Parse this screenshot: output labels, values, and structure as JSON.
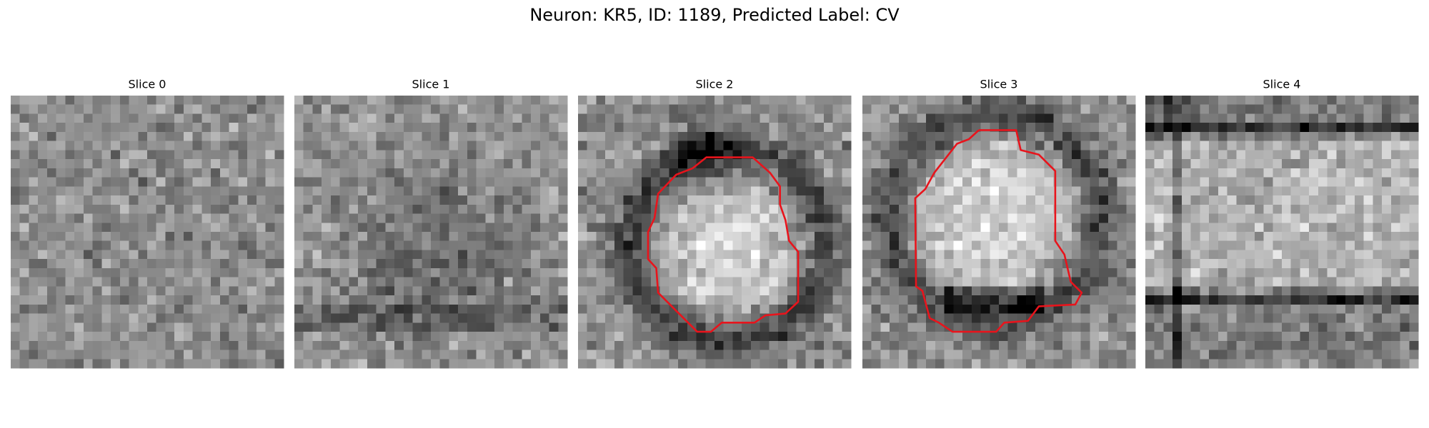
{
  "title": "Neuron: KR5, ID: 1189, Predicted Label: CV",
  "panels": [
    {
      "title": "Slice 0"
    },
    {
      "title": "Slice 1"
    },
    {
      "title": "Slice 2"
    },
    {
      "title": "Slice 3"
    },
    {
      "title": "Slice 4"
    }
  ]
}
